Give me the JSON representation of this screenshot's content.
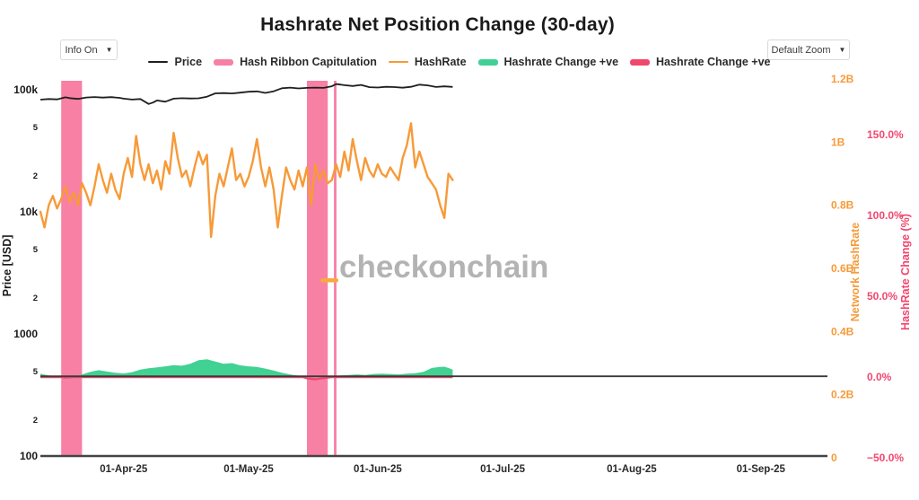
{
  "title": "Hashrate Net Position Change (30-day)",
  "controls": {
    "info_dropdown_label": "Info On",
    "zoom_dropdown_label": "Default Zoom",
    "dropdown_arrow": "▼"
  },
  "watermark": {
    "text": "checkonchain",
    "color": "#b3b3b3",
    "dash_color": "#f8a93e"
  },
  "legend": [
    {
      "label": "Price",
      "type": "line",
      "color": "#1f1f1f"
    },
    {
      "label": "Hash Ribbon Capitulation",
      "type": "bar",
      "color": "#f780a4"
    },
    {
      "label": "HashRate",
      "type": "line",
      "color": "#f79a38"
    },
    {
      "label": "Hashrate Change +ve",
      "type": "bar",
      "color": "#41d192"
    },
    {
      "label": "Hashrate Change +ve",
      "type": "bar",
      "color": "#f0476c"
    }
  ],
  "chart_data": {
    "type": "line",
    "title": "Hashrate Net Position Change (30-day)",
    "x_axis": {
      "range_days": [
        0,
        189
      ],
      "ticks": [
        {
          "label": "01-Apr-25",
          "day": 20
        },
        {
          "label": "01-May-25",
          "day": 50
        },
        {
          "label": "01-Jun-25",
          "day": 81
        },
        {
          "label": "01-Jul-25",
          "day": 111
        },
        {
          "label": "01-Aug-25",
          "day": 142
        },
        {
          "label": "01-Sep-25",
          "day": 173
        }
      ]
    },
    "y_left": {
      "title": "Price [USD]",
      "scale": "log",
      "range": [
        100,
        122000
      ],
      "color": "#1a1a1a",
      "ticks": [
        {
          "label": "100k",
          "v": 100000,
          "major": true
        },
        {
          "label": "5",
          "v": 50000
        },
        {
          "label": "2",
          "v": 20000
        },
        {
          "label": "10k",
          "v": 10000,
          "major": true
        },
        {
          "label": "5",
          "v": 5000
        },
        {
          "label": "2",
          "v": 2000
        },
        {
          "label": "1000",
          "v": 1000,
          "major": true
        },
        {
          "label": "5",
          "v": 500
        },
        {
          "label": "2",
          "v": 200
        },
        {
          "label": "100",
          "v": 100,
          "major": true
        }
      ]
    },
    "y_right_hashrate": {
      "title": "Network HashRate",
      "color": "#f79a38",
      "range": [
        0,
        1.33
      ],
      "ticks": [
        {
          "label": "0",
          "v": 0
        },
        {
          "label": "0.2B",
          "v": 0.2
        },
        {
          "label": "0.4B",
          "v": 0.4
        },
        {
          "label": "0.6B",
          "v": 0.6
        },
        {
          "label": "0.8B",
          "v": 0.8
        },
        {
          "label": "1B",
          "v": 1.0
        },
        {
          "label": "1.2B",
          "v": 1.2
        }
      ]
    },
    "y_right_change": {
      "title": "HashRate Change (%)",
      "color": "#f2476e",
      "range": [
        -55,
        162
      ],
      "ticks": [
        {
          "label": "−50.0%",
          "v": -50
        },
        {
          "label": "0.0%",
          "v": 0
        },
        {
          "label": "50.0%",
          "v": 50
        },
        {
          "label": "100.0%",
          "v": 100
        },
        {
          "label": "150.0%",
          "v": 150
        }
      ]
    },
    "capitulation_bands": {
      "name": "Hash Ribbon Capitulation",
      "color": "#f780a4",
      "bands": [
        {
          "start_day": 5,
          "end_day": 10
        },
        {
          "start_day": 64,
          "end_day": 69
        },
        {
          "start_day": 70.5,
          "end_day": 71.1
        }
      ]
    },
    "series": {
      "price": {
        "name": "Price",
        "color": "#1f1f1f",
        "points": [
          [
            0,
            83000
          ],
          [
            2,
            84000
          ],
          [
            4,
            83500
          ],
          [
            6,
            86800
          ],
          [
            7,
            85500
          ],
          [
            9,
            84200
          ],
          [
            11,
            86500
          ],
          [
            13,
            87200
          ],
          [
            15,
            86300
          ],
          [
            17,
            87000
          ],
          [
            19,
            85800
          ],
          [
            20,
            84500
          ],
          [
            22,
            83200
          ],
          [
            24,
            84000
          ],
          [
            26,
            76500
          ],
          [
            27,
            78500
          ],
          [
            28,
            81800
          ],
          [
            30,
            79800
          ],
          [
            32,
            84500
          ],
          [
            34,
            85300
          ],
          [
            36,
            84800
          ],
          [
            38,
            85200
          ],
          [
            40,
            87800
          ],
          [
            42,
            93400
          ],
          [
            44,
            93900
          ],
          [
            46,
            93300
          ],
          [
            48,
            94800
          ],
          [
            50,
            96400
          ],
          [
            52,
            97000
          ],
          [
            54,
            94300
          ],
          [
            56,
            97100
          ],
          [
            58,
            102900
          ],
          [
            60,
            104100
          ],
          [
            62,
            102600
          ],
          [
            64,
            103700
          ],
          [
            66,
            104200
          ],
          [
            68,
            103600
          ],
          [
            70,
            106800
          ],
          [
            71,
            111200
          ],
          [
            72,
            110400
          ],
          [
            73,
            109000
          ],
          [
            75,
            107300
          ],
          [
            77,
            109600
          ],
          [
            79,
            105100
          ],
          [
            81,
            104300
          ],
          [
            83,
            105700
          ],
          [
            85,
            105200
          ],
          [
            87,
            103900
          ],
          [
            89,
            105800
          ],
          [
            91,
            110200
          ],
          [
            93,
            108600
          ],
          [
            95,
            105300
          ],
          [
            97,
            106700
          ],
          [
            99,
            105600
          ]
        ]
      },
      "hashrate": {
        "name": "HashRate",
        "color": "#f79a38",
        "points": [
          [
            0,
            0.78
          ],
          [
            1,
            0.73
          ],
          [
            2,
            0.8
          ],
          [
            3,
            0.83
          ],
          [
            4,
            0.79
          ],
          [
            5,
            0.82
          ],
          [
            6,
            0.86
          ],
          [
            7,
            0.81
          ],
          [
            8,
            0.84
          ],
          [
            9,
            0.8
          ],
          [
            10,
            0.87
          ],
          [
            11,
            0.84
          ],
          [
            12,
            0.8
          ],
          [
            13,
            0.86
          ],
          [
            14,
            0.93
          ],
          [
            15,
            0.88
          ],
          [
            16,
            0.84
          ],
          [
            17,
            0.9
          ],
          [
            18,
            0.85
          ],
          [
            19,
            0.82
          ],
          [
            20,
            0.9
          ],
          [
            21,
            0.95
          ],
          [
            22,
            0.89
          ],
          [
            23,
            1.02
          ],
          [
            24,
            0.93
          ],
          [
            25,
            0.88
          ],
          [
            26,
            0.93
          ],
          [
            27,
            0.87
          ],
          [
            28,
            0.91
          ],
          [
            29,
            0.85
          ],
          [
            30,
            0.94
          ],
          [
            31,
            0.9
          ],
          [
            32,
            1.03
          ],
          [
            33,
            0.95
          ],
          [
            34,
            0.89
          ],
          [
            35,
            0.91
          ],
          [
            36,
            0.86
          ],
          [
            37,
            0.92
          ],
          [
            38,
            0.97
          ],
          [
            39,
            0.93
          ],
          [
            40,
            0.96
          ],
          [
            41,
            0.7
          ],
          [
            42,
            0.83
          ],
          [
            43,
            0.9
          ],
          [
            44,
            0.86
          ],
          [
            45,
            0.92
          ],
          [
            46,
            0.98
          ],
          [
            47,
            0.88
          ],
          [
            48,
            0.9
          ],
          [
            49,
            0.86
          ],
          [
            50,
            0.89
          ],
          [
            51,
            0.94
          ],
          [
            52,
            1.01
          ],
          [
            53,
            0.92
          ],
          [
            54,
            0.86
          ],
          [
            55,
            0.92
          ],
          [
            56,
            0.85
          ],
          [
            57,
            0.73
          ],
          [
            58,
            0.83
          ],
          [
            59,
            0.92
          ],
          [
            60,
            0.88
          ],
          [
            61,
            0.85
          ],
          [
            62,
            0.91
          ],
          [
            63,
            0.86
          ],
          [
            64,
            0.92
          ],
          [
            65,
            0.8
          ],
          [
            66,
            0.93
          ],
          [
            67,
            0.88
          ],
          [
            68,
            0.91
          ],
          [
            69,
            0.87
          ],
          [
            70,
            0.88
          ],
          [
            71,
            0.93
          ],
          [
            72,
            0.89
          ],
          [
            73,
            0.97
          ],
          [
            74,
            0.91
          ],
          [
            75,
            1.01
          ],
          [
            76,
            0.94
          ],
          [
            77,
            0.88
          ],
          [
            78,
            0.95
          ],
          [
            79,
            0.91
          ],
          [
            80,
            0.89
          ],
          [
            81,
            0.93
          ],
          [
            82,
            0.9
          ],
          [
            83,
            0.89
          ],
          [
            84,
            0.92
          ],
          [
            85,
            0.9
          ],
          [
            86,
            0.88
          ],
          [
            87,
            0.95
          ],
          [
            88,
            0.99
          ],
          [
            89,
            1.06
          ],
          [
            90,
            0.92
          ],
          [
            91,
            0.97
          ],
          [
            92,
            0.93
          ],
          [
            93,
            0.89
          ],
          [
            94,
            0.87
          ],
          [
            95,
            0.85
          ],
          [
            96,
            0.8
          ],
          [
            97,
            0.76
          ],
          [
            98,
            0.9
          ],
          [
            99,
            0.88
          ]
        ]
      },
      "hashrate_change": {
        "name_positive": "Hashrate Change +ve",
        "name_negative": "Hashrate Change +ve",
        "positive_color": "#41d192",
        "negative_color": "#f0476c",
        "unit": "%",
        "points": [
          [
            0,
            2.0
          ],
          [
            2,
            1.0
          ],
          [
            4,
            0.4
          ],
          [
            5,
            0.1
          ],
          [
            6,
            -0.3
          ],
          [
            8,
            0.5
          ],
          [
            10,
            1.6
          ],
          [
            12,
            3.2
          ],
          [
            14,
            4.2
          ],
          [
            16,
            3.4
          ],
          [
            18,
            2.6
          ],
          [
            20,
            2.2
          ],
          [
            22,
            3.0
          ],
          [
            24,
            4.6
          ],
          [
            26,
            5.4
          ],
          [
            28,
            6.0
          ],
          [
            30,
            6.6
          ],
          [
            32,
            7.4
          ],
          [
            34,
            7.0
          ],
          [
            36,
            8.2
          ],
          [
            38,
            10.4
          ],
          [
            40,
            11.0
          ],
          [
            42,
            9.6
          ],
          [
            44,
            8.2
          ],
          [
            46,
            8.6
          ],
          [
            48,
            7.2
          ],
          [
            50,
            6.6
          ],
          [
            52,
            6.2
          ],
          [
            54,
            5.2
          ],
          [
            56,
            4.0
          ],
          [
            58,
            2.6
          ],
          [
            60,
            1.6
          ],
          [
            62,
            0.8
          ],
          [
            63,
            0.2
          ],
          [
            64,
            -0.8
          ],
          [
            66,
            -1.4
          ],
          [
            68,
            -0.6
          ],
          [
            70,
            0.3
          ],
          [
            72,
            0.9
          ],
          [
            74,
            1.3
          ],
          [
            76,
            1.6
          ],
          [
            78,
            1.3
          ],
          [
            80,
            1.9
          ],
          [
            82,
            2.1
          ],
          [
            84,
            1.9
          ],
          [
            86,
            1.6
          ],
          [
            88,
            2.1
          ],
          [
            90,
            2.4
          ],
          [
            92,
            3.2
          ],
          [
            94,
            5.6
          ],
          [
            96,
            6.2
          ],
          [
            97,
            6.4
          ],
          [
            98,
            5.6
          ],
          [
            99,
            4.6
          ]
        ]
      }
    },
    "grid": false,
    "legend_position": "top-center",
    "axis_line_color": "#444444",
    "zero_line_color": "#3a3a3a"
  }
}
